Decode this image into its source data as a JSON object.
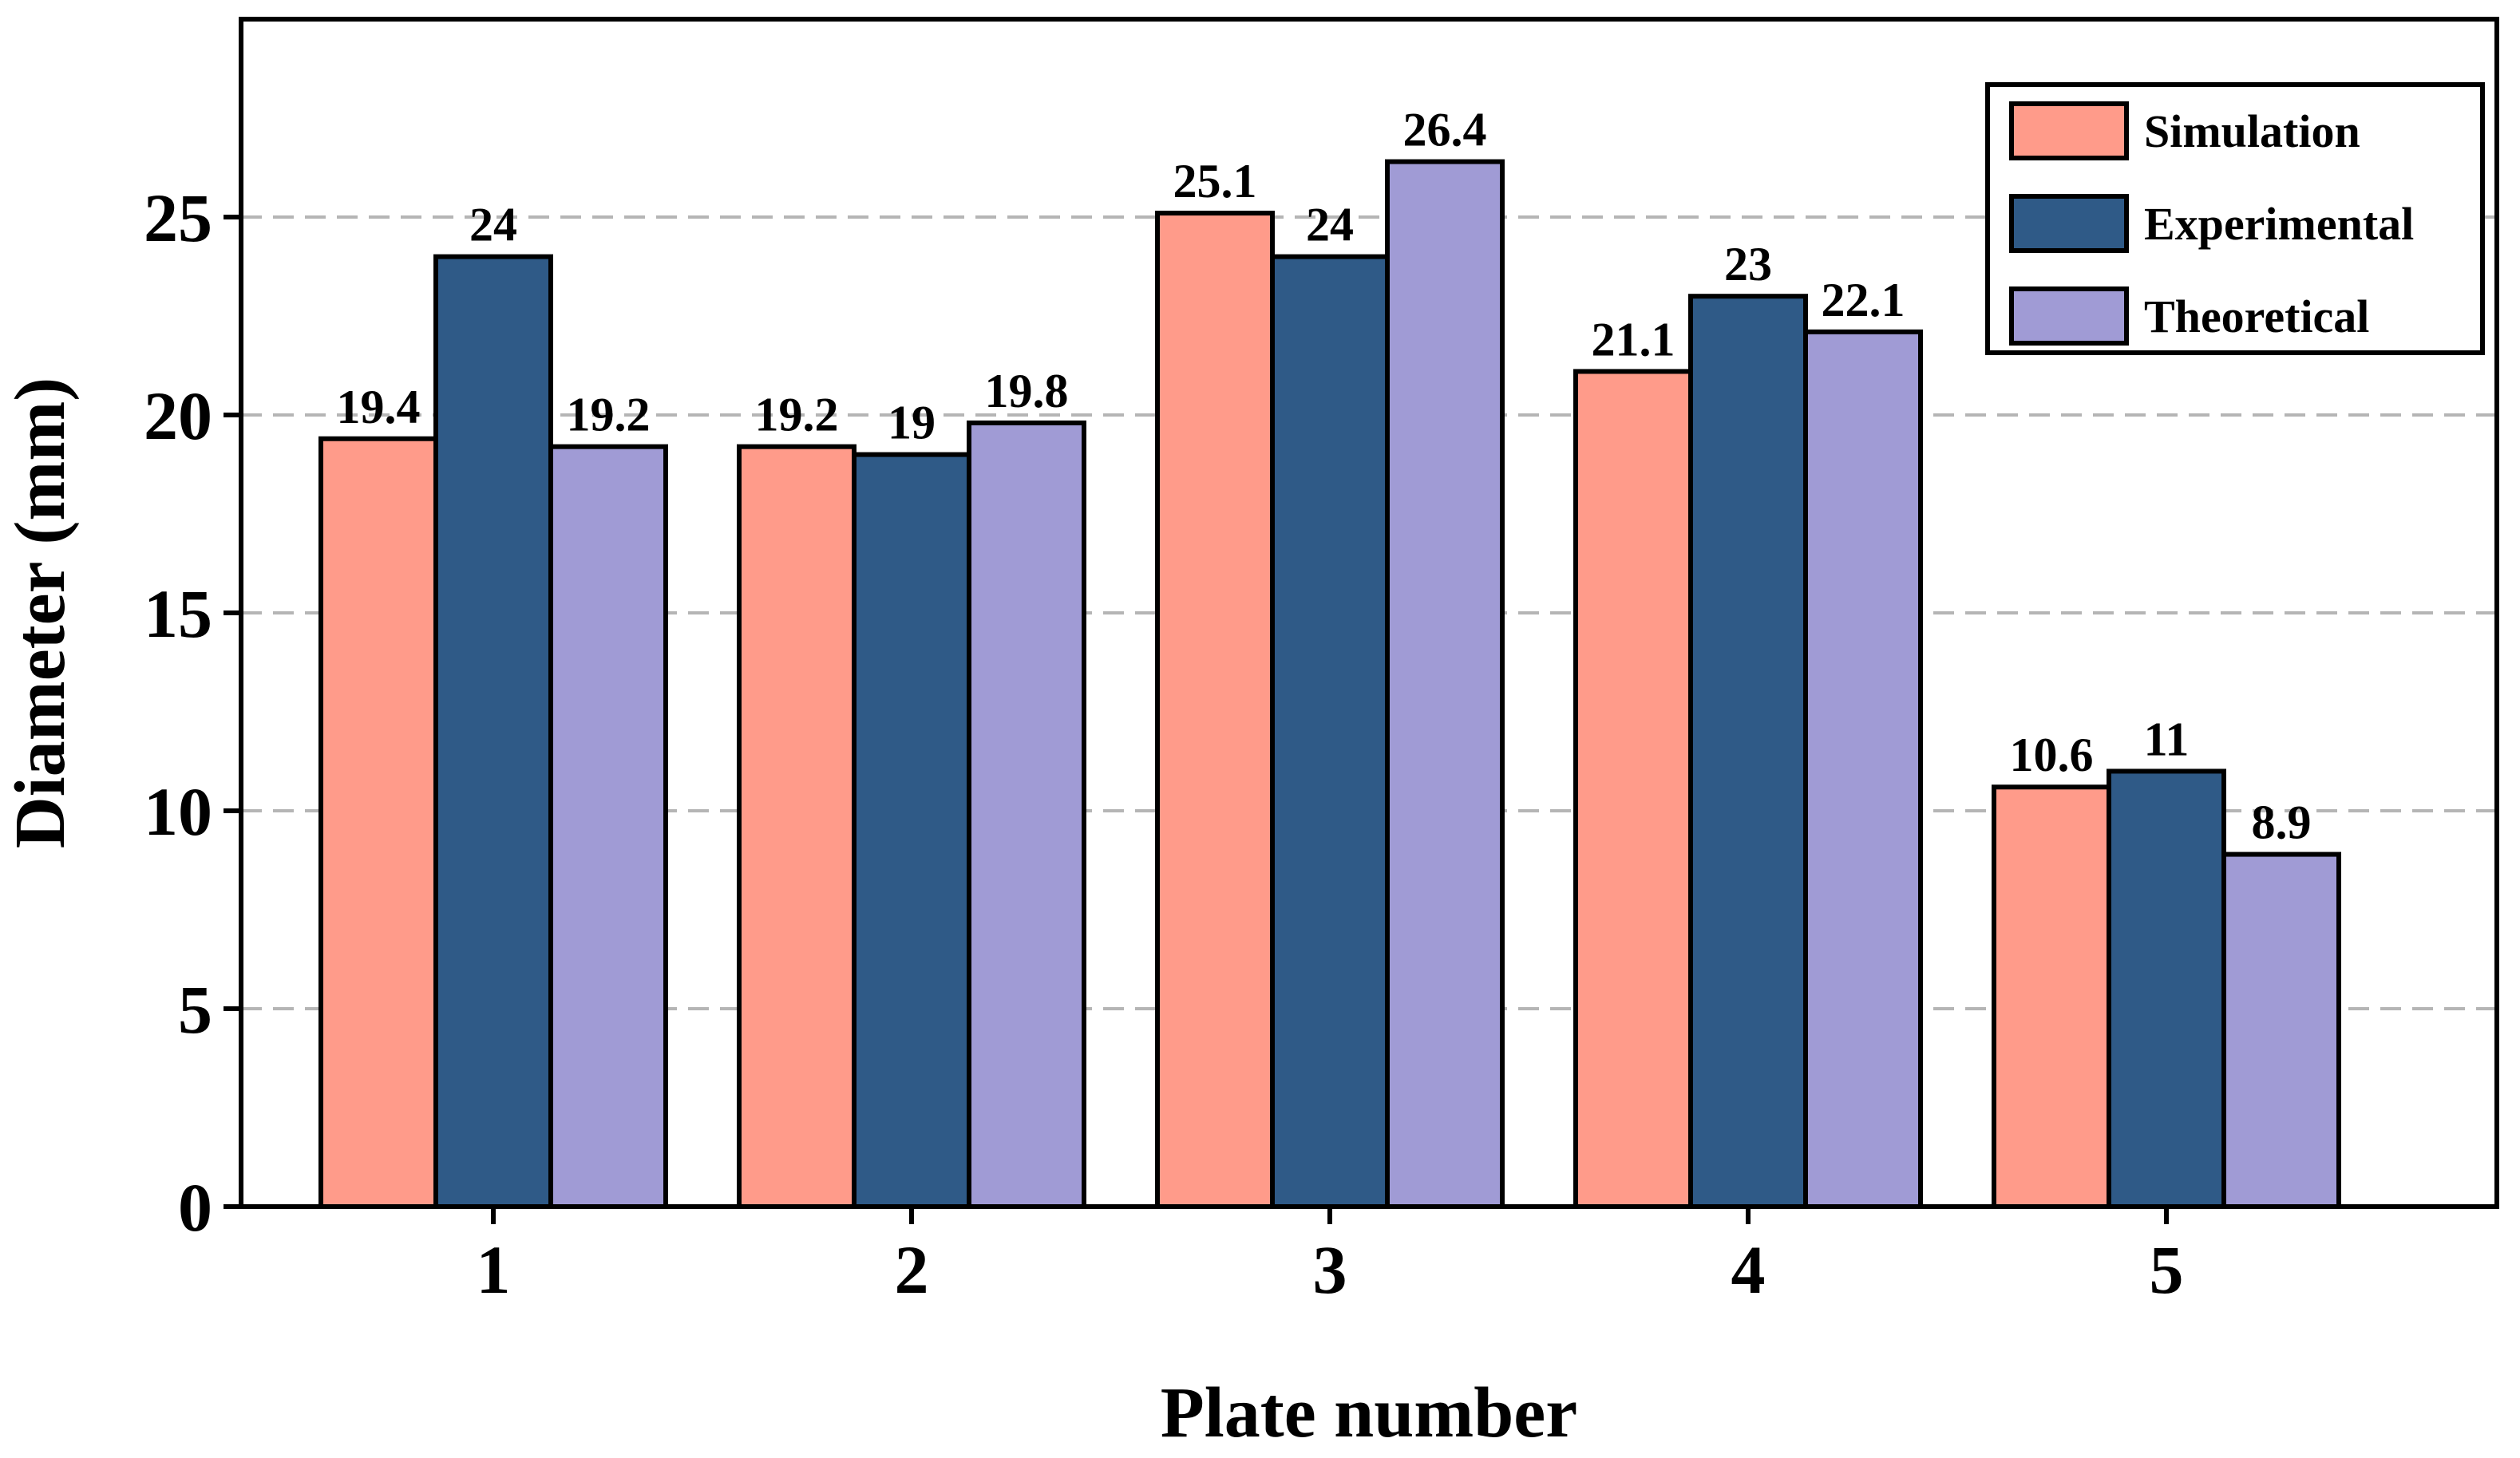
{
  "chart_data": {
    "type": "bar",
    "title": "",
    "xlabel": "Plate number",
    "ylabel": "Diameter (mm)",
    "categories": [
      "1",
      "2",
      "3",
      "4",
      "5"
    ],
    "series": [
      {
        "name": "Simulation",
        "color": "#FF9B8A",
        "values": [
          19.4,
          19.2,
          25.1,
          21.1,
          10.6
        ],
        "labels": [
          "19.4",
          "19.2",
          "25.1",
          "21.1",
          "10.6"
        ]
      },
      {
        "name": "Experimental",
        "color": "#2F5A87",
        "values": [
          24,
          19,
          24,
          23,
          11
        ],
        "labels": [
          "24",
          "19",
          "24",
          "23",
          "11"
        ]
      },
      {
        "name": "Theoretical",
        "color": "#A09BD5",
        "values": [
          19.2,
          19.8,
          26.4,
          22.1,
          8.9
        ],
        "labels": [
          "19.2",
          "19.8",
          "26.4",
          "22.1",
          "8.9"
        ]
      }
    ],
    "ylim": [
      0,
      30
    ],
    "yticks": [
      0,
      5,
      10,
      15,
      20,
      25
    ],
    "ytick_labels": [
      "0",
      "5",
      "10",
      "15",
      "20",
      "25"
    ],
    "grid": "horizontal dashed",
    "legend": "top-right"
  }
}
